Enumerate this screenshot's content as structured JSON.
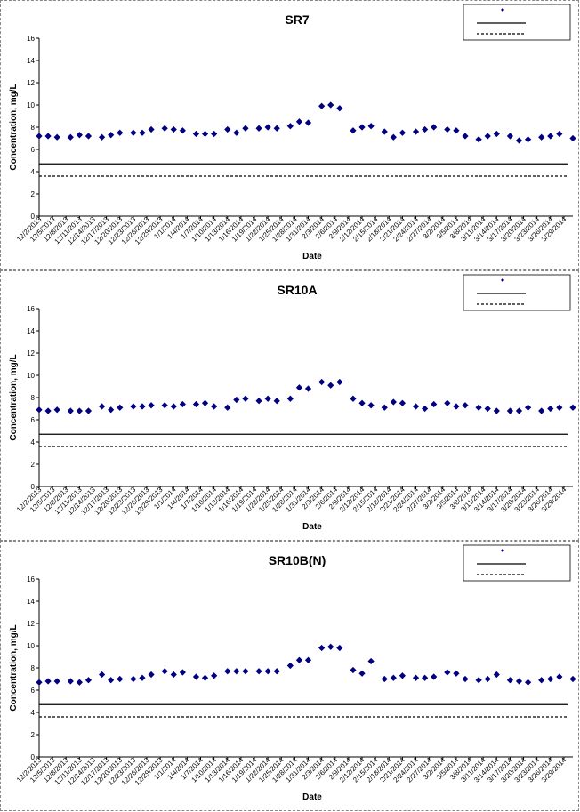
{
  "chart_data": [
    {
      "type": "scatter",
      "title": "SR7",
      "xlabel": "Date",
      "ylabel": "Concentration, mg/L",
      "ylim": [
        0,
        16
      ],
      "yticks": [
        0,
        2,
        4,
        6,
        8,
        10,
        12,
        14,
        16
      ],
      "x_tick_labels": [
        "12/2/2013",
        "12/5/2013",
        "12/8/2013",
        "12/11/2013",
        "12/14/2013",
        "12/17/2013",
        "12/20/2013",
        "12/23/2013",
        "12/26/2013",
        "12/29/2013",
        "1/1/2014",
        "1/4/2014",
        "1/7/2014",
        "1/10/2014",
        "1/13/2014",
        "1/16/2014",
        "1/19/2014",
        "1/22/2014",
        "1/25/2014",
        "1/28/2014",
        "1/31/2014",
        "2/3/2014",
        "2/6/2014",
        "2/9/2014",
        "2/12/2014",
        "2/15/2014",
        "2/18/2014",
        "2/21/2014",
        "2/24/2014",
        "2/27/2014",
        "3/2/2014",
        "3/5/2014",
        "3/8/2014",
        "3/11/2014",
        "3/14/2014",
        "3/17/2014",
        "3/20/2014",
        "3/23/2014",
        "3/26/2014",
        "3/29/2014"
      ],
      "x_range": [
        "12/2/2013",
        "3/31/2014"
      ],
      "grid": false,
      "legend": "top-right",
      "series": [
        {
          "type": "scatter",
          "marker": "diamond",
          "color": "#000080",
          "x": [
            "12/2/2013",
            "12/4/2013",
            "12/6/2013",
            "12/9/2013",
            "12/11/2013",
            "12/13/2013",
            "12/16/2013",
            "12/18/2013",
            "12/20/2013",
            "12/23/2013",
            "12/25/2013",
            "12/27/2013",
            "12/30/2013",
            "1/1/2014",
            "1/3/2014",
            "1/6/2014",
            "1/8/2014",
            "1/10/2014",
            "1/13/2014",
            "1/15/2014",
            "1/17/2014",
            "1/20/2014",
            "1/22/2014",
            "1/24/2014",
            "1/27/2014",
            "1/29/2014",
            "1/31/2014",
            "2/3/2014",
            "2/5/2014",
            "2/7/2014",
            "2/10/2014",
            "2/12/2014",
            "2/14/2014",
            "2/17/2014",
            "2/19/2014",
            "2/21/2014",
            "2/24/2014",
            "2/26/2014",
            "2/28/2014",
            "3/3/2014",
            "3/5/2014",
            "3/7/2014",
            "3/10/2014",
            "3/12/2014",
            "3/14/2014",
            "3/17/2014",
            "3/19/2014",
            "3/21/2014",
            "3/24/2014",
            "3/26/2014",
            "3/28/2014",
            "3/31/2014"
          ],
          "y": [
            7.2,
            7.2,
            7.1,
            7.1,
            7.3,
            7.2,
            7.1,
            7.3,
            7.5,
            7.5,
            7.5,
            7.8,
            7.9,
            7.8,
            7.7,
            7.4,
            7.4,
            7.4,
            7.8,
            7.5,
            7.9,
            7.9,
            8.0,
            7.9,
            8.1,
            8.5,
            8.4,
            9.9,
            10.0,
            9.7,
            7.7,
            8.0,
            8.1,
            7.6,
            7.1,
            7.5,
            7.6,
            7.8,
            8.0,
            7.8,
            7.7,
            7.2,
            6.9,
            7.2,
            7.4,
            7.2,
            6.8,
            6.9,
            7.1,
            7.2,
            7.4,
            7.0
          ]
        },
        {
          "type": "line",
          "style": "solid",
          "color": "#000000",
          "y": 4.7
        },
        {
          "type": "line",
          "style": "dashed",
          "color": "#000000",
          "y": 3.6
        }
      ]
    },
    {
      "type": "scatter",
      "title": "SR10A",
      "xlabel": "Date",
      "ylabel": "Concentration, mg/L",
      "ylim": [
        0,
        16
      ],
      "yticks": [
        0,
        2,
        4,
        6,
        8,
        10,
        12,
        14,
        16
      ],
      "x_tick_labels": [
        "12/2/2013",
        "12/5/2013",
        "12/8/2013",
        "12/11/2013",
        "12/14/2013",
        "12/17/2013",
        "12/20/2013",
        "12/23/2013",
        "12/26/2013",
        "12/29/2013",
        "1/1/2014",
        "1/4/2014",
        "1/7/2014",
        "1/10/2014",
        "1/13/2014",
        "1/16/2014",
        "1/19/2014",
        "1/22/2014",
        "1/25/2014",
        "1/28/2014",
        "1/31/2014",
        "2/3/2014",
        "2/6/2014",
        "2/9/2014",
        "2/12/2014",
        "2/15/2014",
        "2/18/2014",
        "2/21/2014",
        "2/24/2014",
        "2/27/2014",
        "3/2/2014",
        "3/5/2014",
        "3/8/2014",
        "3/11/2014",
        "3/14/2014",
        "3/17/2014",
        "3/20/2014",
        "3/23/2014",
        "3/26/2014",
        "3/29/2014"
      ],
      "x_range": [
        "12/2/2013",
        "3/31/2014"
      ],
      "grid": false,
      "legend": "top-right",
      "series": [
        {
          "type": "scatter",
          "marker": "diamond",
          "color": "#000080",
          "x": [
            "12/2/2013",
            "12/4/2013",
            "12/6/2013",
            "12/9/2013",
            "12/11/2013",
            "12/13/2013",
            "12/16/2013",
            "12/18/2013",
            "12/20/2013",
            "12/23/2013",
            "12/25/2013",
            "12/27/2013",
            "12/30/2013",
            "1/1/2014",
            "1/3/2014",
            "1/6/2014",
            "1/8/2014",
            "1/10/2014",
            "1/13/2014",
            "1/15/2014",
            "1/17/2014",
            "1/20/2014",
            "1/22/2014",
            "1/24/2014",
            "1/27/2014",
            "1/29/2014",
            "1/31/2014",
            "2/3/2014",
            "2/5/2014",
            "2/7/2014",
            "2/10/2014",
            "2/12/2014",
            "2/14/2014",
            "2/17/2014",
            "2/19/2014",
            "2/21/2014",
            "2/24/2014",
            "2/26/2014",
            "2/28/2014",
            "3/3/2014",
            "3/5/2014",
            "3/7/2014",
            "3/10/2014",
            "3/12/2014",
            "3/14/2014",
            "3/17/2014",
            "3/19/2014",
            "3/21/2014",
            "3/24/2014",
            "3/26/2014",
            "3/28/2014",
            "3/31/2014"
          ],
          "y": [
            6.9,
            6.8,
            6.9,
            6.8,
            6.8,
            6.8,
            7.2,
            6.9,
            7.1,
            7.2,
            7.2,
            7.3,
            7.3,
            7.2,
            7.4,
            7.4,
            7.5,
            7.2,
            7.1,
            7.8,
            7.9,
            7.7,
            7.9,
            7.7,
            7.9,
            8.9,
            8.8,
            9.4,
            9.1,
            9.4,
            7.9,
            7.5,
            7.3,
            7.1,
            7.6,
            7.5,
            7.2,
            7.0,
            7.4,
            7.5,
            7.2,
            7.3,
            7.1,
            7.0,
            6.8,
            6.8,
            6.8,
            7.1,
            6.8,
            7.0,
            7.1,
            7.1
          ]
        },
        {
          "type": "line",
          "style": "solid",
          "color": "#000000",
          "y": 4.7
        },
        {
          "type": "line",
          "style": "dashed",
          "color": "#000000",
          "y": 3.6
        }
      ]
    },
    {
      "type": "scatter",
      "title": "SR10B(N)",
      "xlabel": "Date",
      "ylabel": "Concentration, mg/L",
      "ylim": [
        0,
        16
      ],
      "yticks": [
        0,
        2,
        4,
        6,
        8,
        10,
        12,
        14,
        16
      ],
      "x_tick_labels": [
        "12/2/2013",
        "12/5/2013",
        "12/8/2013",
        "12/11/2013",
        "12/14/2013",
        "12/17/2013",
        "12/20/2013",
        "12/23/2013",
        "12/26/2013",
        "12/29/2013",
        "1/1/2014",
        "1/4/2014",
        "1/7/2014",
        "1/10/2014",
        "1/13/2014",
        "1/16/2014",
        "1/19/2014",
        "1/22/2014",
        "1/25/2014",
        "1/28/2014",
        "1/31/2014",
        "2/3/2014",
        "2/6/2014",
        "2/9/2014",
        "2/12/2014",
        "2/15/2014",
        "2/18/2014",
        "2/21/2014",
        "2/24/2014",
        "2/27/2014",
        "3/2/2014",
        "3/5/2014",
        "3/8/2014",
        "3/11/2014",
        "3/14/2014",
        "3/17/2014",
        "3/20/2014",
        "3/23/2014",
        "3/26/2014",
        "3/29/2014"
      ],
      "x_range": [
        "12/2/2013",
        "3/31/2014"
      ],
      "grid": false,
      "legend": "top-right",
      "series": [
        {
          "type": "scatter",
          "marker": "diamond",
          "color": "#000080",
          "x": [
            "12/2/2013",
            "12/4/2013",
            "12/6/2013",
            "12/9/2013",
            "12/11/2013",
            "12/13/2013",
            "12/16/2013",
            "12/18/2013",
            "12/20/2013",
            "12/23/2013",
            "12/25/2013",
            "12/27/2013",
            "12/30/2013",
            "1/1/2014",
            "1/3/2014",
            "1/6/2014",
            "1/8/2014",
            "1/10/2014",
            "1/13/2014",
            "1/15/2014",
            "1/17/2014",
            "1/20/2014",
            "1/22/2014",
            "1/24/2014",
            "1/27/2014",
            "1/29/2014",
            "1/31/2014",
            "2/3/2014",
            "2/5/2014",
            "2/7/2014",
            "2/10/2014",
            "2/12/2014",
            "2/14/2014",
            "2/17/2014",
            "2/19/2014",
            "2/21/2014",
            "2/24/2014",
            "2/26/2014",
            "2/28/2014",
            "3/3/2014",
            "3/5/2014",
            "3/7/2014",
            "3/10/2014",
            "3/12/2014",
            "3/14/2014",
            "3/17/2014",
            "3/19/2014",
            "3/21/2014",
            "3/24/2014",
            "3/26/2014",
            "3/28/2014",
            "3/31/2014"
          ],
          "y": [
            6.7,
            6.8,
            6.8,
            6.8,
            6.7,
            6.9,
            7.4,
            6.9,
            7.0,
            7.0,
            7.1,
            7.4,
            7.7,
            7.4,
            7.6,
            7.2,
            7.1,
            7.3,
            7.7,
            7.7,
            7.7,
            7.7,
            7.7,
            7.7,
            8.2,
            8.7,
            8.7,
            9.8,
            9.9,
            9.8,
            7.8,
            7.5,
            8.6,
            7.0,
            7.1,
            7.3,
            7.1,
            7.1,
            7.2,
            7.6,
            7.5,
            7.0,
            6.9,
            7.0,
            7.4,
            6.9,
            6.8,
            6.7,
            6.9,
            7.0,
            7.2,
            7.0
          ]
        },
        {
          "type": "line",
          "style": "solid",
          "color": "#000000",
          "y": 4.7
        },
        {
          "type": "line",
          "style": "dashed",
          "color": "#000000",
          "y": 3.6
        }
      ]
    }
  ]
}
